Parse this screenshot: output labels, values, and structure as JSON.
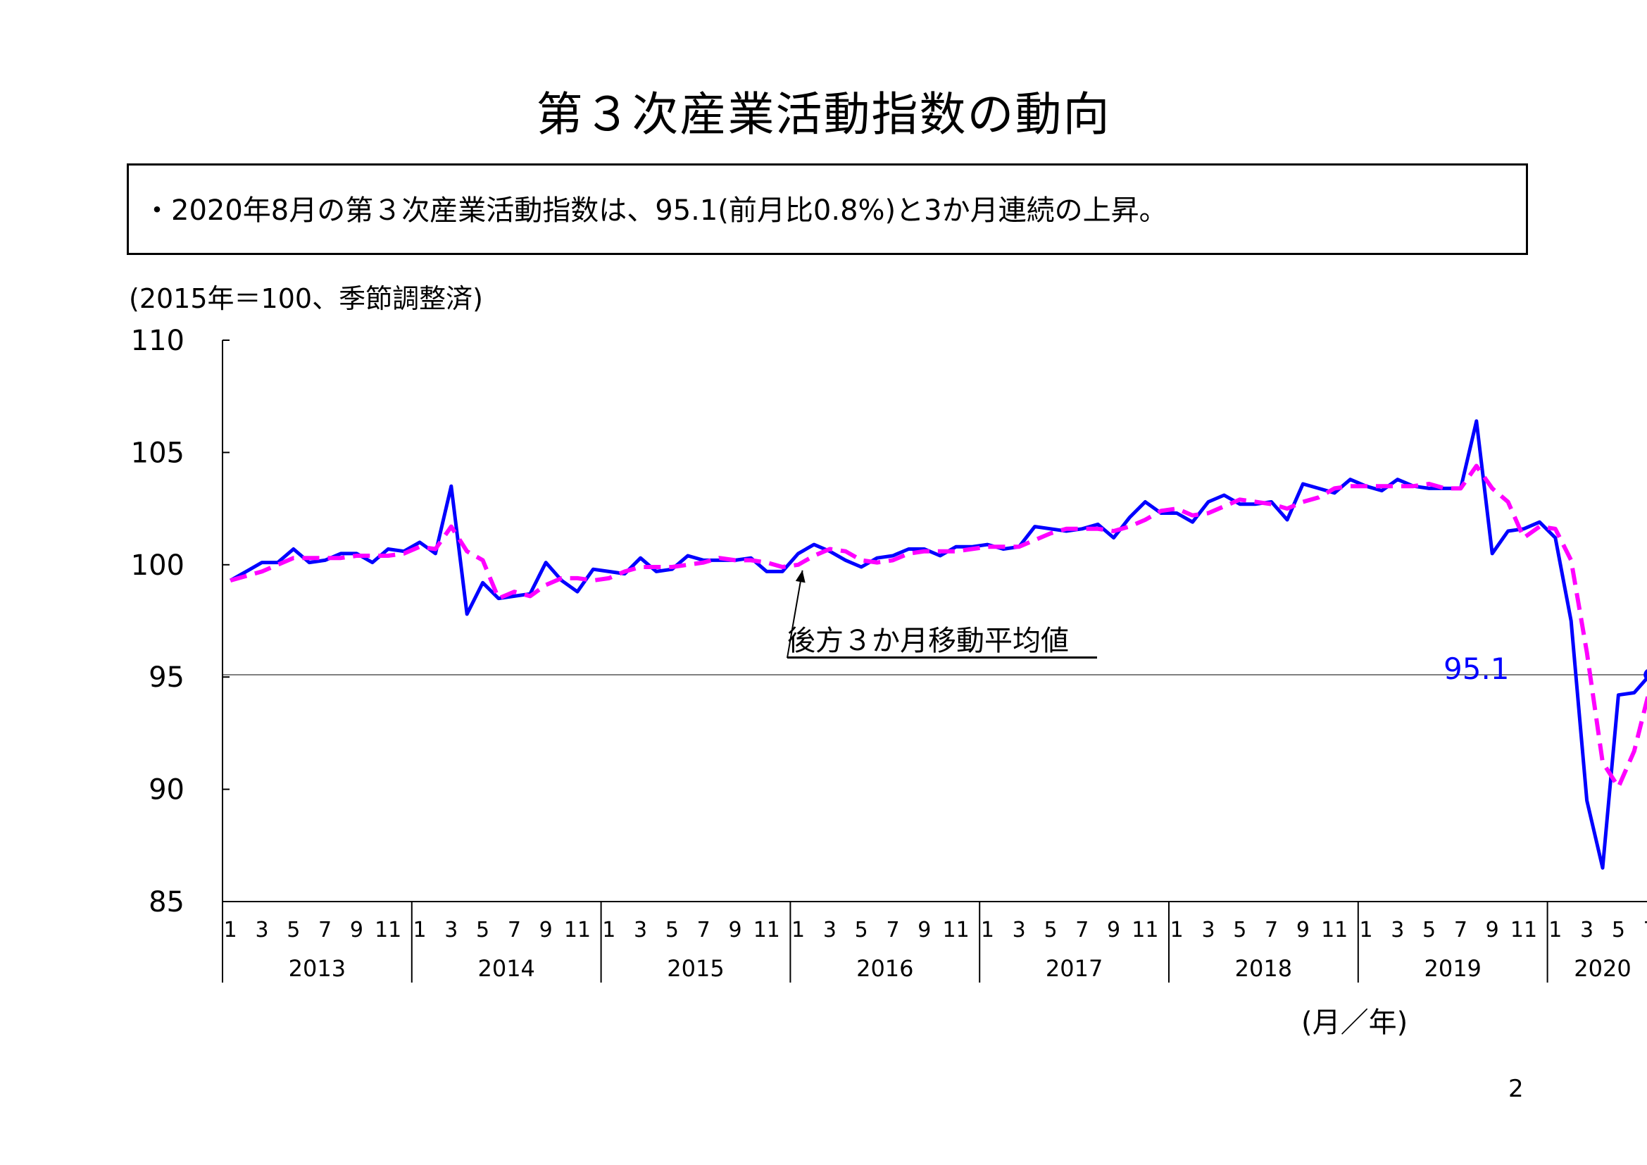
{
  "title": "第３次産業活動指数の動向",
  "summary": "・2020年8月の第３次産業活動指数は、95.1(前月比0.8%)と3か月連続の上昇。",
  "unit_note": "(2015年＝100、季節調整済)",
  "x_unit": "(月／年)",
  "page_number": "2",
  "colors": {
    "index_line": "#0000ff",
    "moving_average": "#ff00ff",
    "reference_line": "#808080"
  },
  "chart_data": {
    "type": "line",
    "title": "",
    "xlabel": "(月／年)",
    "ylabel": "(2015年＝100、季節調整済)",
    "ylim": [
      85,
      110
    ],
    "yticks": [
      85,
      90,
      95,
      100,
      105,
      110
    ],
    "month_tick_labels": [
      "1",
      "3",
      "5",
      "7",
      "9",
      "11"
    ],
    "years": [
      "2013",
      "2014",
      "2015",
      "2016",
      "2017",
      "2018",
      "2019",
      "2020"
    ],
    "x_start": "2013-01",
    "x_end": "2020-08",
    "reference_line": 95.1,
    "latest_value_label": "95.1",
    "annotation": "後方３か月移動平均値",
    "series": [
      {
        "name": "",
        "style": "solid",
        "values": [
          99.3,
          99.7,
          100.1,
          100.1,
          100.7,
          100.1,
          100.2,
          100.5,
          100.5,
          100.1,
          100.7,
          100.6,
          101.0,
          100.5,
          103.5,
          97.8,
          99.2,
          98.5,
          98.6,
          98.7,
          100.1,
          99.3,
          98.8,
          99.8,
          99.7,
          99.6,
          100.3,
          99.7,
          99.8,
          100.4,
          100.2,
          100.2,
          100.2,
          100.3,
          99.7,
          99.7,
          100.5,
          100.9,
          100.6,
          100.2,
          99.9,
          100.3,
          100.4,
          100.7,
          100.7,
          100.4,
          100.8,
          100.8,
          100.9,
          100.7,
          100.8,
          101.7,
          101.6,
          101.5,
          101.6,
          101.8,
          101.2,
          102.1,
          102.8,
          102.3,
          102.3,
          101.9,
          102.8,
          103.1,
          102.7,
          102.7,
          102.8,
          102.0,
          103.6,
          103.4,
          103.2,
          103.8,
          103.5,
          103.3,
          103.8,
          103.5,
          103.4,
          103.4,
          103.4,
          106.4,
          100.5,
          101.5,
          101.6,
          101.9,
          101.2,
          97.5,
          89.5,
          86.5,
          94.2,
          94.3,
          95.1
        ]
      },
      {
        "name": "後方３か月移動平均値",
        "style": "dashed",
        "values": [
          99.3,
          99.5,
          99.7,
          100.0,
          100.3,
          100.3,
          100.3,
          100.3,
          100.4,
          100.4,
          100.4,
          100.5,
          100.8,
          100.7,
          101.7,
          100.6,
          100.2,
          98.5,
          98.8,
          98.6,
          99.1,
          99.4,
          99.4,
          99.3,
          99.4,
          99.7,
          99.9,
          99.9,
          99.9,
          100.0,
          100.1,
          100.3,
          100.2,
          100.2,
          100.1,
          99.9,
          100.0,
          100.4,
          100.7,
          100.6,
          100.2,
          100.1,
          100.2,
          100.5,
          100.6,
          100.6,
          100.6,
          100.7,
          100.8,
          100.8,
          100.8,
          101.1,
          101.4,
          101.6,
          101.6,
          101.6,
          101.5,
          101.7,
          102.0,
          102.4,
          102.5,
          102.2,
          102.3,
          102.6,
          102.9,
          102.8,
          102.7,
          102.5,
          102.8,
          103.0,
          103.4,
          103.5,
          103.5,
          103.5,
          103.5,
          103.5,
          103.6,
          103.4,
          103.4,
          104.4,
          103.4,
          102.8,
          101.2,
          101.7,
          101.6,
          100.2,
          96.1,
          91.2,
          90.1,
          91.7,
          94.5
        ]
      }
    ]
  }
}
